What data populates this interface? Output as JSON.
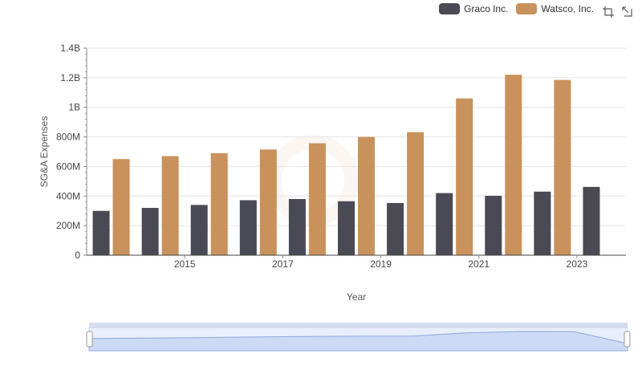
{
  "legend": [
    {
      "name": "Graco Inc.",
      "color": "#4a4a55"
    },
    {
      "name": "Watsco, Inc.",
      "color": "#c9915b"
    }
  ],
  "toolbar": {
    "icons": [
      "zoom-icon",
      "reset-icon"
    ]
  },
  "chart_data": {
    "type": "bar",
    "x": [
      2014,
      2015,
      2016,
      2017,
      2018,
      2019,
      2020,
      2021,
      2022,
      2023,
      2024
    ],
    "series": [
      {
        "name": "Graco Inc.",
        "color": "#4a4a55",
        "values": [
          300000000,
          320000000,
          340000000,
          372000000,
          380000000,
          365000000,
          353000000,
          420000000,
          402000000,
          430000000,
          462000000
        ]
      },
      {
        "name": "Watsco, Inc.",
        "color": "#c9915b",
        "values": [
          650000000,
          670000000,
          690000000,
          715000000,
          757000000,
          800000000,
          832000000,
          1060000000,
          1220000000,
          1185000000,
          null
        ]
      }
    ],
    "xlabel": "Year",
    "ylabel": "SG&A Expenses",
    "ylim": [
      0,
      1400000000
    ],
    "yticks": [
      0,
      200000000,
      400000000,
      600000000,
      800000000,
      1000000000,
      1200000000,
      1400000000
    ],
    "ytick_labels": [
      "0",
      "200M",
      "400M",
      "600M",
      "800M",
      "1B",
      "1.2B",
      "1.4B"
    ],
    "xtick_labels": [
      "2015",
      "2017",
      "2019",
      "2021",
      "2023"
    ],
    "grid": true,
    "legend_position": "top-right"
  }
}
